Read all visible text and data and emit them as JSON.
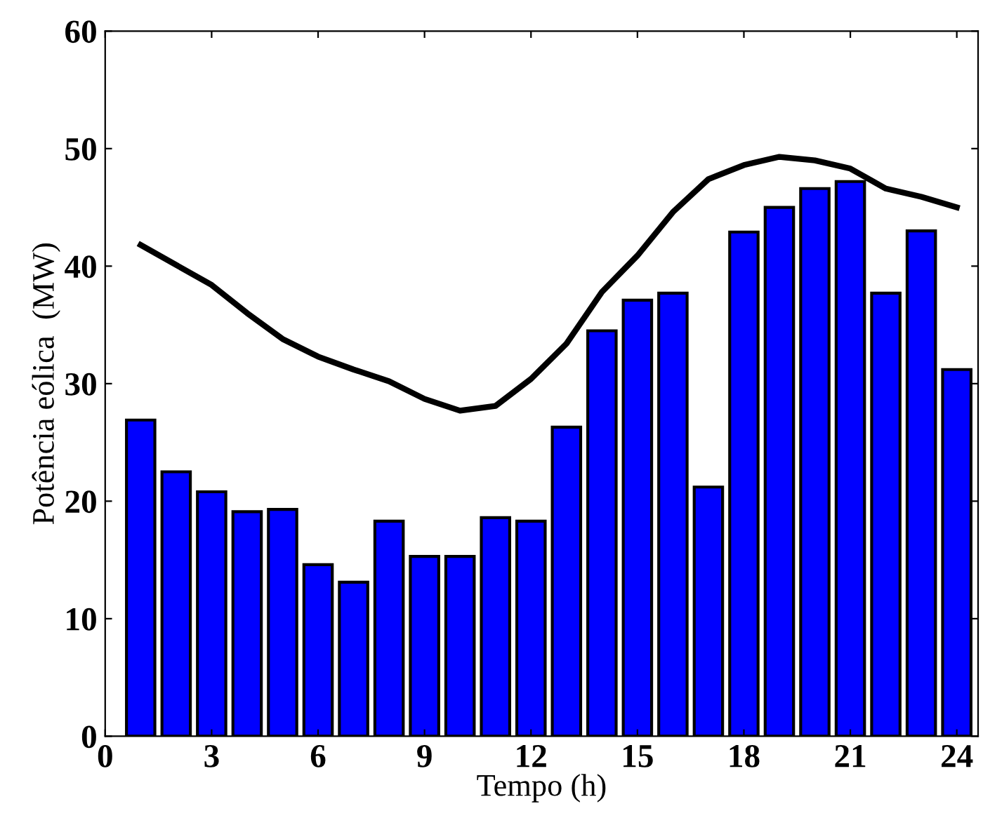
{
  "chart_data": {
    "type": "bar",
    "xlabel": "Tempo (h)",
    "ylabel": "Potência eólica  (MW)",
    "x": [
      1,
      2,
      3,
      4,
      5,
      6,
      7,
      8,
      9,
      10,
      11,
      12,
      13,
      14,
      15,
      16,
      17,
      18,
      19,
      20,
      21,
      22,
      23,
      24
    ],
    "series": [
      {
        "color": "#0000ff",
        "values": [
          26.9,
          22.5,
          20.8,
          19.1,
          19.3,
          14.6,
          13.1,
          18.3,
          15.3,
          15.3,
          18.6,
          18.3,
          26.3,
          34.5,
          37.1,
          37.7,
          21.2,
          42.9,
          45.0,
          46.6,
          47.2,
          37.7,
          43.0,
          31.2
        ]
      },
      {
        "type": "line",
        "color": "#000000",
        "values": [
          41.8,
          40.1,
          38.4,
          36.0,
          33.8,
          32.3,
          31.2,
          30.2,
          28.7,
          27.7,
          28.1,
          30.4,
          33.4,
          37.8,
          40.9,
          44.6,
          47.4,
          48.6,
          49.3,
          49.0,
          48.3,
          46.6,
          45.9,
          45.0
        ]
      }
    ],
    "xlim": [
      0,
      24.6
    ],
    "xticks": [
      0,
      3,
      6,
      9,
      12,
      15,
      18,
      21,
      24
    ],
    "ylim": [
      0,
      60
    ],
    "yticks": [
      0,
      10,
      20,
      30,
      40,
      50,
      60
    ],
    "grid": false,
    "legend": false
  }
}
